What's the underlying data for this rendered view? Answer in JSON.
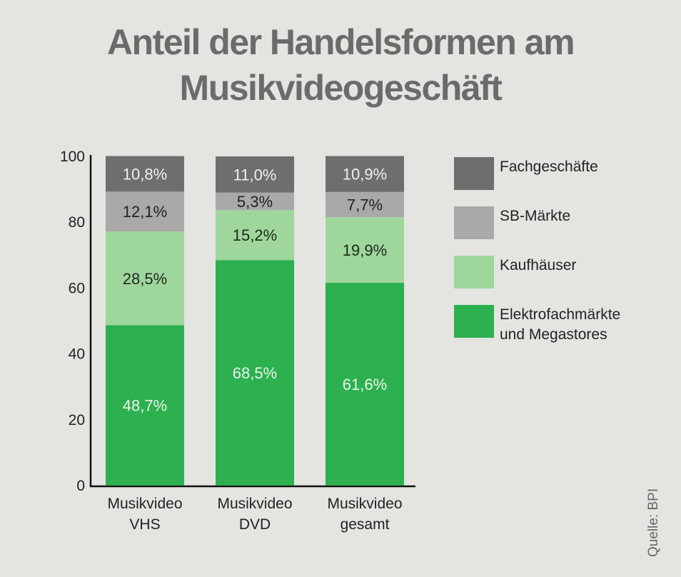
{
  "title": [
    "Anteil der Handelsformen am",
    "Musikvideogeschäft"
  ],
  "source": "Quelle: BPI",
  "chart_data": {
    "type": "bar",
    "stacked": true,
    "categories": [
      [
        "Musikvideo",
        "VHS"
      ],
      [
        "Musikvideo",
        "DVD"
      ],
      [
        "Musikvideo",
        "gesamt"
      ]
    ],
    "ylim": [
      0,
      100
    ],
    "yticks": [
      "0",
      "20",
      "40",
      "60",
      "80",
      "100"
    ],
    "series": [
      {
        "name": "Elektrofachmärkte\nund Megastores",
        "color": "#2db04f",
        "label_color": "#e8f5ea",
        "values": [
          48.7,
          68.5,
          61.6
        ],
        "labels": [
          "48,7%",
          "68,5%",
          "61,6%"
        ]
      },
      {
        "name": "Kaufhäuser",
        "color": "#9fd69c",
        "label_color": "#1d2a1d",
        "values": [
          28.5,
          15.2,
          19.9
        ],
        "labels": [
          "28,5%",
          "15,2%",
          "19,9%"
        ]
      },
      {
        "name": "SB-Märkte",
        "color": "#a9a9a9",
        "label_color": "#222222",
        "values": [
          12.1,
          5.3,
          7.7
        ],
        "labels": [
          "12,1%",
          "5,3%",
          "7,7%"
        ]
      },
      {
        "name": "Fachgeschäfte",
        "color": "#6e6e6e",
        "label_color": "#f0f0f0",
        "values": [
          10.8,
          11.0,
          10.9
        ],
        "labels": [
          "10,8%",
          "11,0%",
          "10,9%"
        ]
      }
    ],
    "legend_position": "right"
  }
}
